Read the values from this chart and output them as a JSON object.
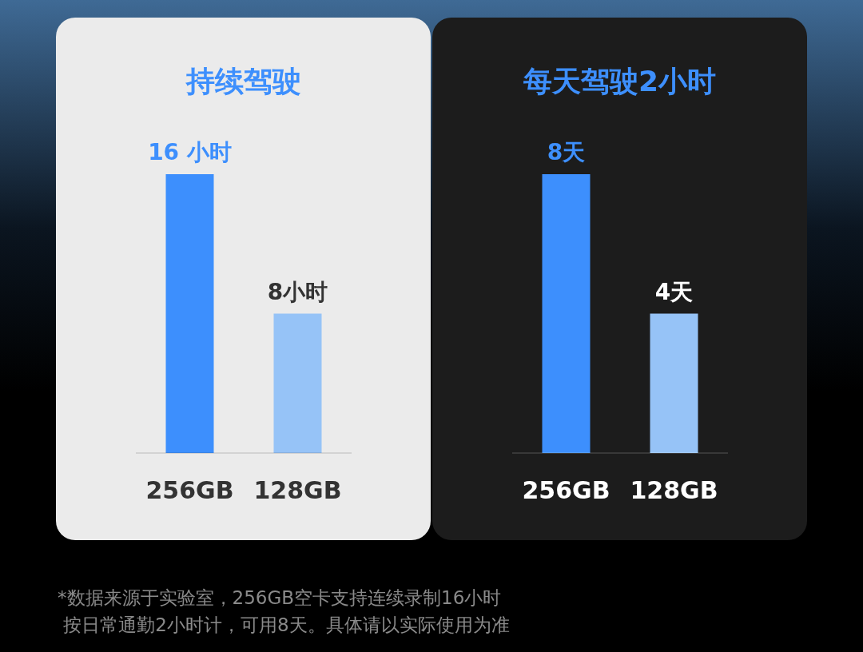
{
  "chart_data": [
    {
      "type": "bar",
      "title": "持续驾驶",
      "categories": [
        "256GB",
        "128GB"
      ],
      "values": [
        16,
        8
      ],
      "colors": [
        "#3d8ffd",
        "#96c3f7"
      ],
      "value_labels": [
        "16 小时",
        "8小时"
      ],
      "annotations": [
        "*数据来源于实验室，256GB空卡支持连续录制16小时",
        " 按日常通勤2小时计，可用8天。具体请以实际使用为准"
      ]
    },
    {
      "type": "bar",
      "title": "每天驾驶2小时",
      "categories": [
        "256GB",
        "128GB"
      ],
      "values": [
        8,
        4
      ],
      "colors": [
        "#3d8ffd",
        "#96c3f7"
      ],
      "value_labels": [
        "8天",
        "4天"
      ]
    }
  ]
}
